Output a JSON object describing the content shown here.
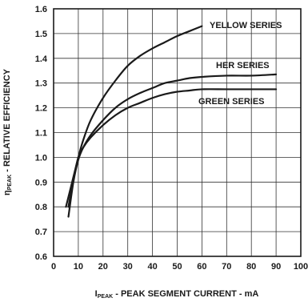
{
  "chart_data": {
    "type": "line",
    "xlabel": {
      "main": "I",
      "subscript": "PEAK",
      "rest": " - PEAK SEGMENT CURRENT - mA"
    },
    "ylabel": {
      "main": "η",
      "subscript": "PEAK",
      "rest": " - RELATIVE EFFICIENCY"
    },
    "xlim": [
      0,
      100
    ],
    "ylim": [
      0.6,
      1.6
    ],
    "x_ticks": [
      "0",
      "10",
      "20",
      "30",
      "40",
      "50",
      "60",
      "70",
      "80",
      "90",
      "100"
    ],
    "y_ticks": [
      "0.6",
      "0.7",
      "0.8",
      "0.9",
      "1.0",
      "1.1",
      "1.2",
      "1.3",
      "1.4",
      "1.5",
      "1.6"
    ],
    "grid": true,
    "colors": {
      "line": "#1a1a1a",
      "grid": "#333333"
    },
    "series": [
      {
        "name": "YELLOW SERIES",
        "x": [
          5,
          7,
          10,
          12,
          15,
          20,
          25,
          30,
          35,
          40,
          45,
          50,
          55,
          60
        ],
        "y": [
          0.8,
          0.88,
          1.0,
          1.07,
          1.15,
          1.24,
          1.31,
          1.37,
          1.41,
          1.44,
          1.465,
          1.49,
          1.51,
          1.53
        ]
      },
      {
        "name": "HER SERIES",
        "x": [
          6,
          8,
          10,
          12,
          15,
          20,
          25,
          30,
          35,
          40,
          45,
          50,
          55,
          60,
          70,
          80,
          90
        ],
        "y": [
          0.76,
          0.9,
          0.99,
          1.04,
          1.09,
          1.15,
          1.2,
          1.235,
          1.26,
          1.28,
          1.3,
          1.31,
          1.32,
          1.325,
          1.33,
          1.33,
          1.335
        ]
      },
      {
        "name": "GREEN SERIES",
        "x": [
          6,
          8,
          10,
          12,
          15,
          20,
          25,
          30,
          35,
          40,
          45,
          50,
          55,
          60,
          70,
          80,
          90
        ],
        "y": [
          0.8,
          0.91,
          1.0,
          1.04,
          1.08,
          1.13,
          1.17,
          1.2,
          1.22,
          1.24,
          1.255,
          1.265,
          1.27,
          1.275,
          1.275,
          1.275,
          1.275
        ]
      }
    ]
  }
}
